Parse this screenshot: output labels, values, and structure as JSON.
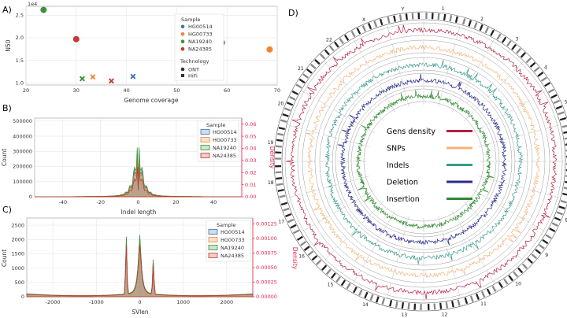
{
  "panels": {
    "a": "A)",
    "b": "B)",
    "c": "C)",
    "d": "D)"
  },
  "colors": {
    "HG00514": "#3b75af",
    "HG00733": "#ef8636",
    "NA19240": "#3a923a",
    "NA24385": "#c53932",
    "density_axis": "#e8254f"
  },
  "chart_data": [
    {
      "id": "A",
      "type": "scatter",
      "title": "",
      "xlabel": "Genome coverage",
      "ylabel": "N50",
      "y_multiplier": "1e4",
      "xlim": [
        20,
        70
      ],
      "ylim": [
        0.95,
        2.7
      ],
      "xticks": [
        20,
        30,
        40,
        50,
        60,
        70
      ],
      "yticks": [
        "1.0",
        "1.5",
        "2.0",
        "2.5"
      ],
      "yticks_values": [
        1.0,
        1.5,
        2.0,
        2.5
      ],
      "legend_title": "Sample",
      "legend_tech_title": "Technology",
      "technologies": [
        "ONT",
        "HiFi"
      ],
      "points": [
        {
          "sample": "NA19240",
          "tech": "ONT",
          "x": 23.5,
          "y": 2.62
        },
        {
          "sample": "NA24385",
          "tech": "ONT",
          "x": 30.0,
          "y": 1.97
        },
        {
          "sample": "HG00514",
          "tech": "ONT",
          "x": 59.0,
          "y": 1.89
        },
        {
          "sample": "HG00733",
          "tech": "ONT",
          "x": 68.5,
          "y": 1.74
        },
        {
          "sample": "NA19240",
          "tech": "HiFi",
          "x": 31.2,
          "y": 1.09
        },
        {
          "sample": "HG00733",
          "tech": "HiFi",
          "x": 33.3,
          "y": 1.13
        },
        {
          "sample": "NA24385",
          "tech": "HiFi",
          "x": 37.0,
          "y": 1.04
        },
        {
          "sample": "HG00514",
          "tech": "HiFi",
          "x": 41.3,
          "y": 1.14
        }
      ],
      "samples": [
        "HG00514",
        "HG00733",
        "NA19240",
        "NA24385"
      ]
    },
    {
      "id": "B",
      "type": "area",
      "xlabel": "Indel length",
      "ylabel": "Count",
      "ylabel_right": "Density",
      "xlim": [
        -55,
        55
      ],
      "ylim": [
        0,
        520000
      ],
      "ylim_right": [
        0,
        0.065
      ],
      "xticks": [
        -40,
        -20,
        0,
        20,
        40
      ],
      "yticks": [
        0,
        100000,
        200000,
        300000,
        400000,
        500000
      ],
      "yticks_right": [
        "0.00",
        "0.01",
        "0.02",
        "0.03",
        "0.04",
        "0.05",
        "0.06"
      ],
      "legend_title": "Sample",
      "series": [
        {
          "name": "HG00514",
          "peak": 420000
        },
        {
          "name": "HG00733",
          "peak": 380000
        },
        {
          "name": "NA19240",
          "peak": 480000
        },
        {
          "name": "NA24385",
          "peak": 290000
        }
      ]
    },
    {
      "id": "C",
      "type": "area",
      "xlabel": "SVlen",
      "ylabel": "Count",
      "ylabel_right": "Density",
      "xlim": [
        -2600,
        2600
      ],
      "ylim": [
        0,
        2750
      ],
      "ylim_right": [
        0,
        0.00135
      ],
      "xticks": [
        -2000,
        -1000,
        0,
        1000,
        2000
      ],
      "yticks": [
        0,
        500,
        1000,
        1500,
        2000,
        2500
      ],
      "yticks_right": [
        "0.00000",
        "0.00025",
        "0.00050",
        "0.00075",
        "0.00100",
        "0.00125"
      ],
      "legend_title": "Sample",
      "series": [
        {
          "name": "HG00514",
          "peak": 2600
        },
        {
          "name": "HG00733",
          "peak": 2500
        },
        {
          "name": "NA19240",
          "peak": 2700
        },
        {
          "name": "NA24385",
          "peak": 2300
        }
      ]
    },
    {
      "id": "D",
      "type": "circos",
      "tracks": [
        {
          "name": "Gens density",
          "color": "#b5203f"
        },
        {
          "name": "SNPs",
          "color": "#f6b57a"
        },
        {
          "name": "Indels",
          "color": "#3a9a8a"
        },
        {
          "name": "Deletion",
          "color": "#2a2a8c"
        },
        {
          "name": "Insertion",
          "color": "#2f8a2f"
        }
      ],
      "chromosomes": [
        "1",
        "2",
        "3",
        "4",
        "5",
        "6",
        "7",
        "8",
        "9",
        "10",
        "11",
        "12",
        "13",
        "14",
        "15",
        "16",
        "17",
        "18",
        "19",
        "20",
        "21",
        "22",
        "X",
        "Y"
      ]
    }
  ]
}
